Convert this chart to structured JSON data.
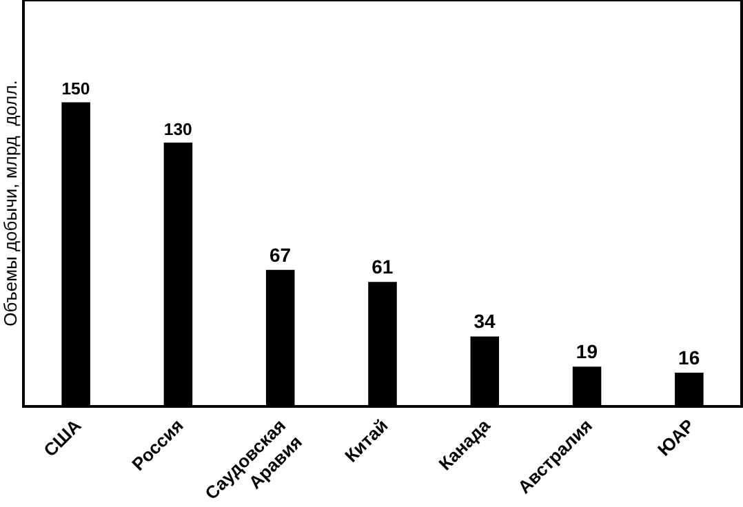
{
  "chart_data": {
    "type": "bar",
    "ylabel": "Объемы добычи, млрд  долл.",
    "categories": [
      "США",
      "Россия",
      "Саудовская\nАравия",
      "Китай",
      "Канада",
      "Австралия",
      "ЮАР"
    ],
    "values": [
      150,
      130,
      67,
      61,
      34,
      19,
      16
    ],
    "color": "#000000",
    "ylim": [
      0,
      200
    ],
    "data_labels": true,
    "grid": false,
    "tick_labels": "x"
  }
}
